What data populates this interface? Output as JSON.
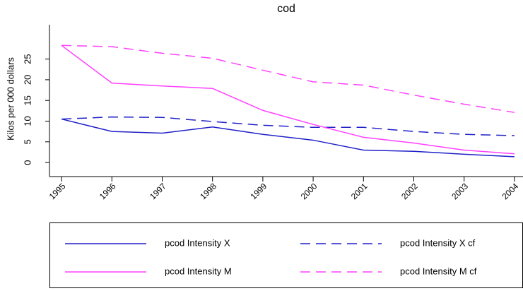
{
  "chart_data": {
    "type": "line",
    "title": "cod",
    "y_label": "Kilos per 000 dollars",
    "x": [
      1995,
      1996,
      1997,
      1998,
      1999,
      2000,
      2001,
      2002,
      2003,
      2004
    ],
    "xlim": [
      1994.76,
      2004.17
    ],
    "xticks": [
      1995,
      1996,
      1997,
      1998,
      1999,
      2000,
      2001,
      2002,
      2003,
      2004
    ],
    "ylim": [
      -3.4,
      33.3
    ],
    "yticks": [
      0,
      5,
      10,
      15,
      20,
      25
    ],
    "series": [
      {
        "name": "pcod Intensity X",
        "color": "#2020c8",
        "dashed": false,
        "values": [
          10.5,
          7.5,
          7.1,
          8.6,
          6.8,
          5.4,
          3.0,
          2.7,
          2.0,
          1.4
        ]
      },
      {
        "name": "pcod Intensity X cf",
        "color": "#2020c8",
        "dashed": true,
        "values": [
          10.5,
          11.0,
          10.9,
          9.9,
          9.0,
          8.5,
          8.5,
          7.5,
          6.8,
          6.5
        ]
      },
      {
        "name": "pcod Intensity M",
        "color": "#ff40ff",
        "dashed": false,
        "values": [
          28.3,
          19.2,
          18.5,
          17.9,
          12.6,
          9.2,
          6.1,
          4.7,
          3.0,
          2.1
        ]
      },
      {
        "name": "pcod Intensity M cf",
        "color": "#ff40ff",
        "dashed": true,
        "values": [
          28.3,
          28.0,
          26.4,
          25.2,
          22.3,
          19.5,
          18.7,
          16.3,
          14.1,
          12.1
        ]
      }
    ]
  }
}
